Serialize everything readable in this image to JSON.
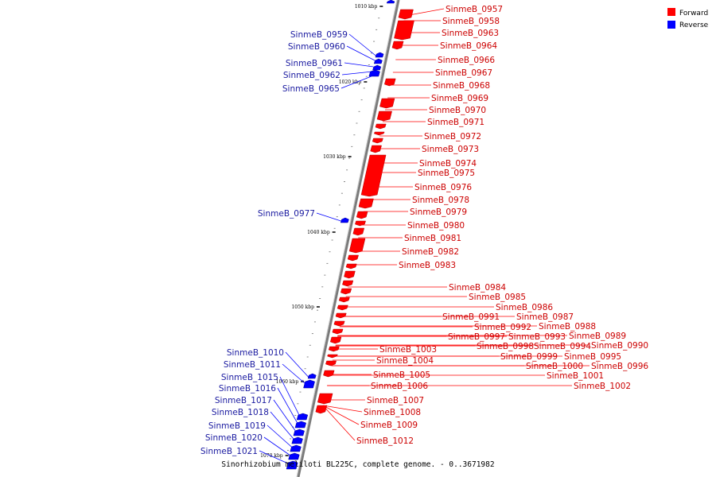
{
  "caption": "Sinorhizobium meliloti BL225C, complete genome. - 0..3671982",
  "legend": {
    "forward_label": "Forward",
    "reverse_label": "Reverse",
    "forward_color": "#ff0000",
    "reverse_color": "#0000ff"
  },
  "scale_ticks": [
    "1010 kbp",
    "1020 kbp",
    "1030 kbp",
    "1040 kbp",
    "1050 kbp",
    "1060 kbp",
    "1070 kbp"
  ],
  "forward_genes": [
    "SinmeB_0957",
    "SinmeB_0958",
    "SinmeB_0963",
    "SinmeB_0964",
    "SinmeB_0966",
    "SinmeB_0967",
    "SinmeB_0968",
    "SinmeB_0969",
    "SinmeB_0970",
    "SinmeB_0971",
    "SinmeB_0972",
    "SinmeB_0973",
    "SinmeB_0974",
    "SinmeB_0975",
    "SinmeB_0976",
    "SinmeB_0978",
    "SinmeB_0979",
    "SinmeB_0980",
    "SinmeB_0981",
    "SinmeB_0982",
    "SinmeB_0983",
    "SinmeB_0984",
    "SinmeB_0985",
    "SinmeB_0986",
    "SinmeB_0987",
    "SinmeB_0988",
    "SinmeB_0989",
    "SinmeB_0990",
    "SinmeB_0991",
    "SinmeB_0992",
    "SinmeB_0993",
    "SinmeB_0994",
    "SinmeB_0995",
    "SinmeB_0996",
    "SinmeB_0997",
    "SinmeB_0998",
    "SinmeB_0999",
    "SinmeB_1000",
    "SinmeB_1001",
    "SinmeB_1002",
    "SinmeB_1003",
    "SinmeB_1004",
    "SinmeB_1005",
    "SinmeB_1006",
    "SinmeB_1007",
    "SinmeB_1008",
    "SinmeB_1009",
    "SinmeB_1012"
  ],
  "reverse_genes": [
    "SinmeB_0959",
    "SinmeB_0960",
    "SinmeB_0961",
    "SinmeB_0962",
    "SinmeB_0965",
    "SinmeB_0977",
    "SinmeB_1010",
    "SinmeB_1011",
    "SinmeB_1015",
    "SinmeB_1016",
    "SinmeB_1017",
    "SinmeB_1018",
    "SinmeB_1019",
    "SinmeB_1020",
    "SinmeB_1021"
  ]
}
